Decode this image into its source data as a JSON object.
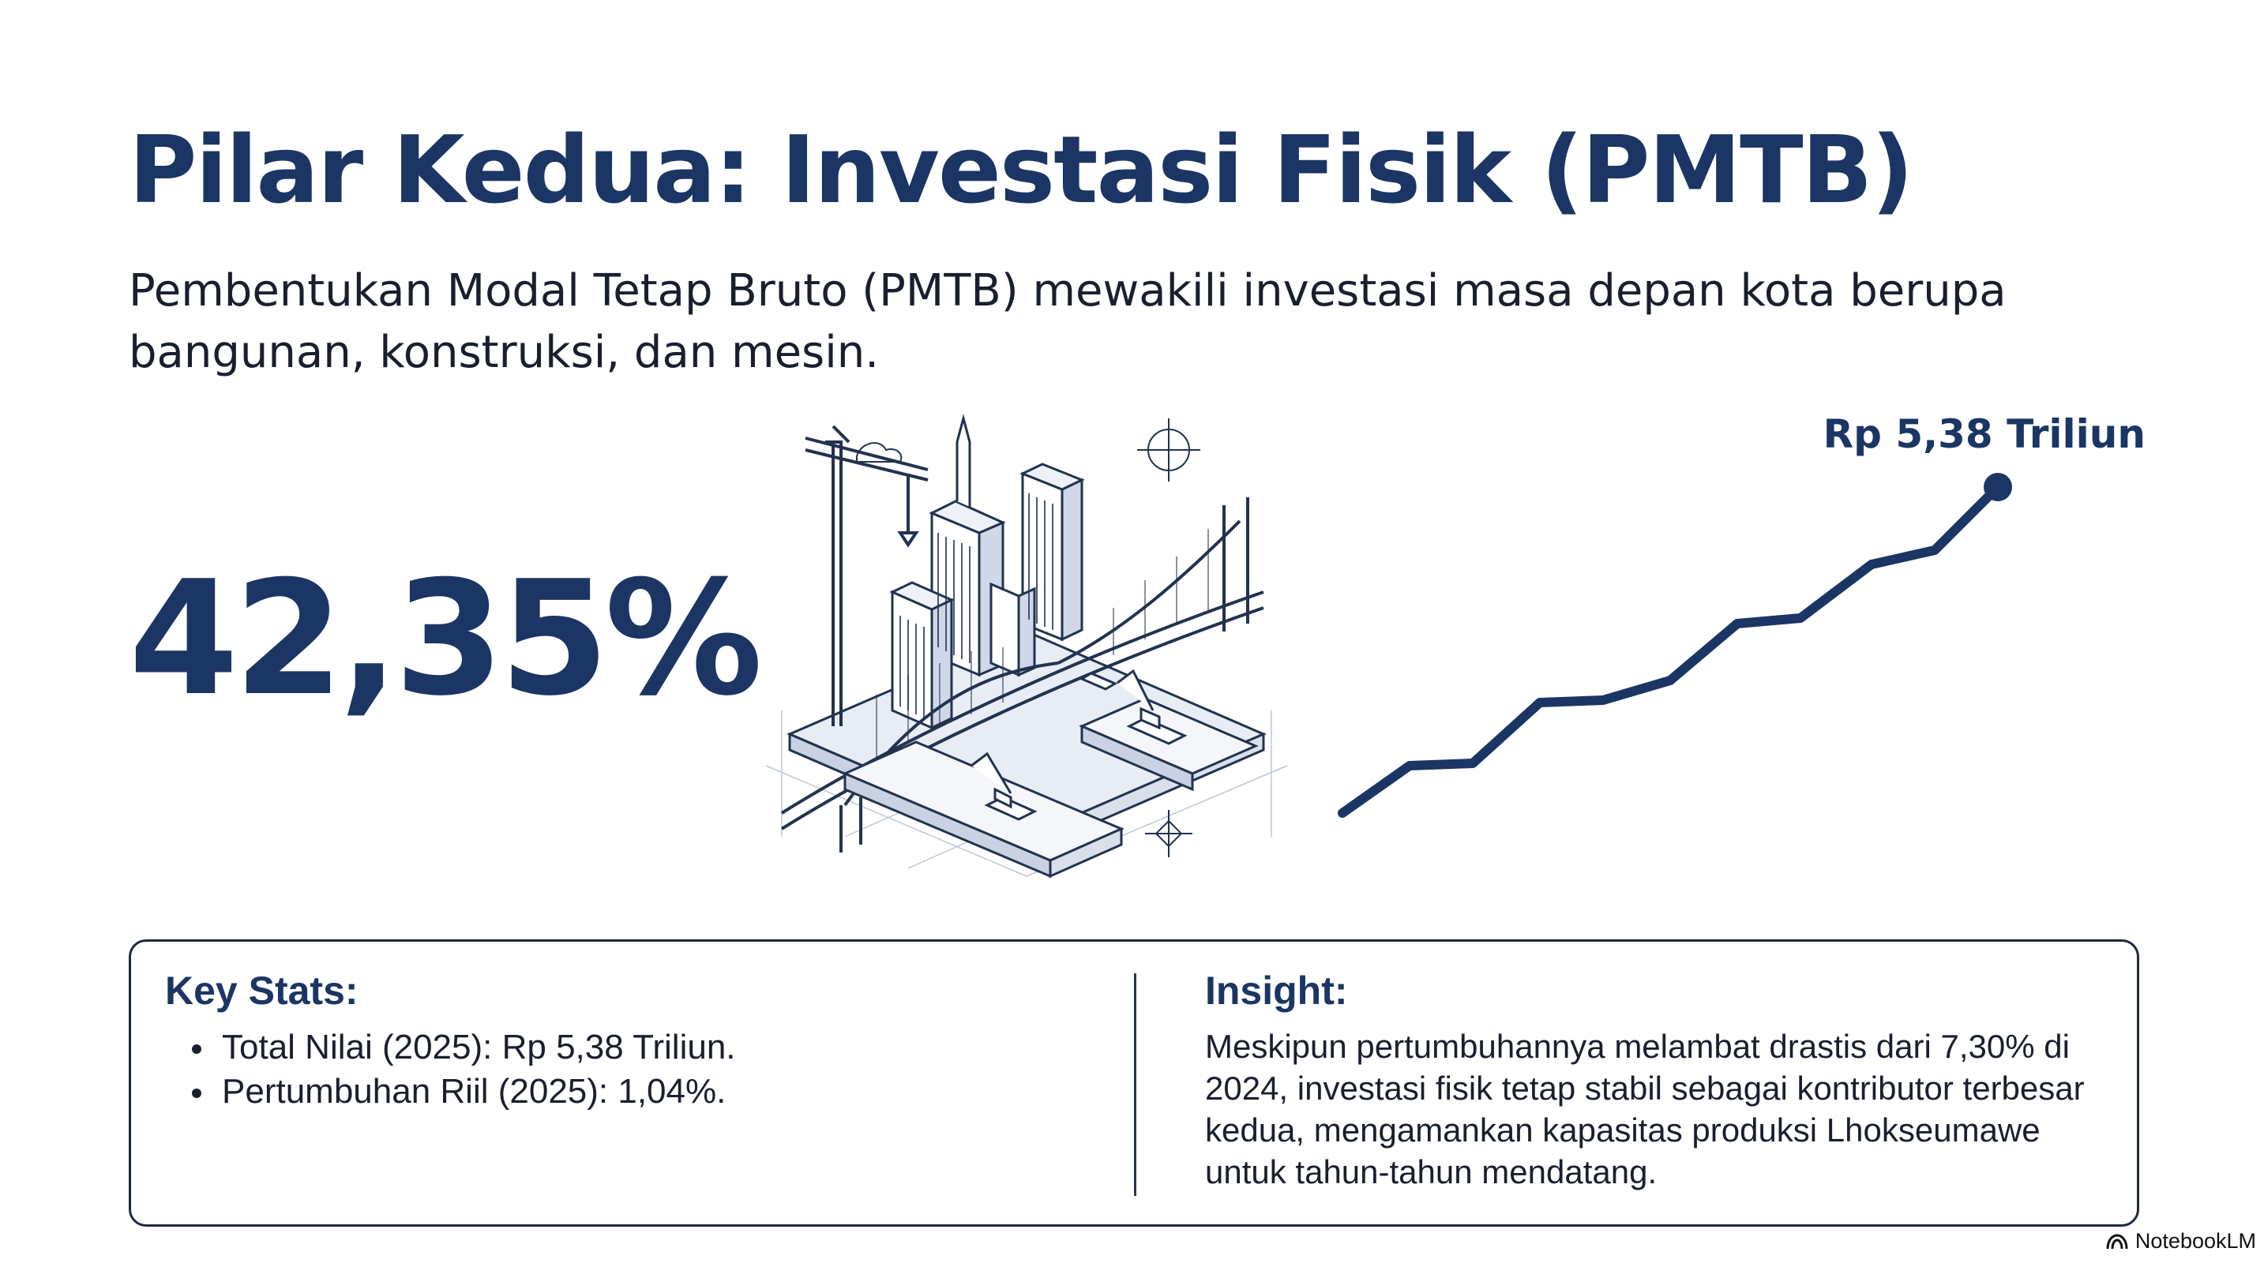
{
  "title": "Pilar Kedua: Investasi Fisik (PMTB)",
  "subtitle": "Pembentukan Modal Tetap Bruto (PMTB) mewakili investasi masa depan kota berupa bangunan, konstruksi, dan mesin.",
  "highlight": {
    "share_value": "42,35%"
  },
  "illustration": {
    "icon": "city-construction-icon"
  },
  "trend": {
    "end_label": "Rp 5,38 Triliun",
    "line_color": "#1b3564"
  },
  "panel": {
    "key_stats": {
      "heading": "Key Stats:",
      "items": [
        "Total Nilai (2025): Rp 5,38 Triliun.",
        "Pertumbuhan Riil (2025): 1,04%."
      ]
    },
    "insight": {
      "heading": "Insight:",
      "text": "Meskipun pertumbuhannya melambat drastis dari 7,30% di 2024, investasi fisik tetap stabil sebagai kontributor terbesar kedua, mengamankan kapasitas produksi Lhokseumawe untuk tahun-tahun mendatang."
    }
  },
  "brand": {
    "name": "NotebookLM",
    "icon": "notebooklm-logo-icon"
  },
  "colors": {
    "accent": "#1b3564",
    "text": "#1a1f2e",
    "border": "#1f2a3e"
  }
}
